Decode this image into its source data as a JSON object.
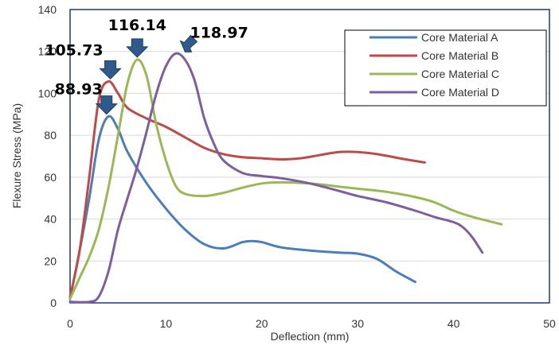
{
  "chart_data": {
    "type": "line",
    "xlabel": "Deflection (mm)",
    "ylabel": "Flexure Stress (MPa)",
    "xlim": [
      0,
      50
    ],
    "ylim": [
      0,
      140
    ],
    "x_ticks": [
      0,
      10,
      20,
      30,
      40,
      50
    ],
    "y_ticks": [
      0,
      20,
      40,
      60,
      80,
      100,
      120,
      140
    ],
    "grid": "horizontal",
    "legend_position": "top-right",
    "series": [
      {
        "name": "Core Material A",
        "color": "#4a7ebb",
        "points": [
          [
            0,
            2
          ],
          [
            1,
            25
          ],
          [
            2,
            50
          ],
          [
            3,
            78
          ],
          [
            4,
            89
          ],
          [
            5,
            83
          ],
          [
            6,
            72
          ],
          [
            8,
            57
          ],
          [
            10,
            45
          ],
          [
            12,
            35
          ],
          [
            14,
            28
          ],
          [
            16,
            26
          ],
          [
            18,
            29
          ],
          [
            19,
            29.5
          ],
          [
            20,
            29
          ],
          [
            22,
            26.5
          ],
          [
            25,
            25
          ],
          [
            28,
            24
          ],
          [
            30,
            23.5
          ],
          [
            32,
            21
          ],
          [
            34,
            15
          ],
          [
            36,
            10
          ]
        ]
      },
      {
        "name": "Core Material B",
        "color": "#be4b48",
        "points": [
          [
            0,
            3
          ],
          [
            1,
            25
          ],
          [
            2,
            60
          ],
          [
            3,
            97
          ],
          [
            4,
            105.7
          ],
          [
            5,
            100
          ],
          [
            6,
            93
          ],
          [
            8,
            88
          ],
          [
            10,
            84
          ],
          [
            12,
            79
          ],
          [
            14,
            74
          ],
          [
            16,
            71
          ],
          [
            18,
            69.5
          ],
          [
            20,
            69
          ],
          [
            22,
            68.5
          ],
          [
            24,
            69
          ],
          [
            26,
            70.5
          ],
          [
            28,
            72
          ],
          [
            30,
            72
          ],
          [
            32,
            71
          ],
          [
            35,
            68.5
          ],
          [
            37,
            67
          ]
        ]
      },
      {
        "name": "Core Material C",
        "color": "#98b954",
        "points": [
          [
            0,
            2
          ],
          [
            1,
            12
          ],
          [
            2,
            22
          ],
          [
            3,
            35
          ],
          [
            4,
            55
          ],
          [
            5,
            80
          ],
          [
            6,
            105
          ],
          [
            7,
            116.1
          ],
          [
            8,
            108
          ],
          [
            9,
            85
          ],
          [
            10,
            68
          ],
          [
            11,
            56
          ],
          [
            12,
            52
          ],
          [
            14,
            51
          ],
          [
            16,
            52.5
          ],
          [
            18,
            55
          ],
          [
            20,
            57
          ],
          [
            22,
            57.5
          ],
          [
            25,
            57
          ],
          [
            28,
            55.5
          ],
          [
            30,
            54.5
          ],
          [
            33,
            53
          ],
          [
            36,
            50.5
          ],
          [
            38,
            48
          ],
          [
            40,
            44
          ],
          [
            42,
            41
          ],
          [
            45,
            37.5
          ]
        ]
      },
      {
        "name": "Core Material D",
        "color": "#7d5fa0",
        "points": [
          [
            0,
            0.5
          ],
          [
            2,
            0.5
          ],
          [
            3,
            3
          ],
          [
            4,
            15
          ],
          [
            5,
            35
          ],
          [
            6,
            50
          ],
          [
            7,
            65
          ],
          [
            8,
            82
          ],
          [
            9,
            100
          ],
          [
            10,
            113
          ],
          [
            11,
            119
          ],
          [
            12,
            116
          ],
          [
            13,
            106
          ],
          [
            14,
            88
          ],
          [
            15,
            76
          ],
          [
            16,
            68
          ],
          [
            18,
            62
          ],
          [
            20,
            60.5
          ],
          [
            22,
            59.5
          ],
          [
            25,
            57
          ],
          [
            28,
            53.5
          ],
          [
            30,
            51
          ],
          [
            33,
            48
          ],
          [
            36,
            44
          ],
          [
            38,
            41
          ],
          [
            40,
            38.5
          ],
          [
            41,
            36
          ],
          [
            42,
            31
          ],
          [
            43,
            24
          ]
        ]
      }
    ],
    "annotations": [
      {
        "text": "88.93",
        "series": "Core Material A",
        "x": 3.8,
        "y": 88.93,
        "color": "#2e5a8c"
      },
      {
        "text": "105.73",
        "series": "Core Material B",
        "x": 4.2,
        "y": 105.73,
        "color": "#2e5a8c"
      },
      {
        "text": "116.14",
        "series": "Core Material C",
        "x": 7.0,
        "y": 116.14,
        "color": "#2e5a8c"
      },
      {
        "text": "118.97",
        "series": "Core Material D",
        "x": 12.0,
        "y": 118.97,
        "color": "#2e5a8c"
      }
    ]
  }
}
